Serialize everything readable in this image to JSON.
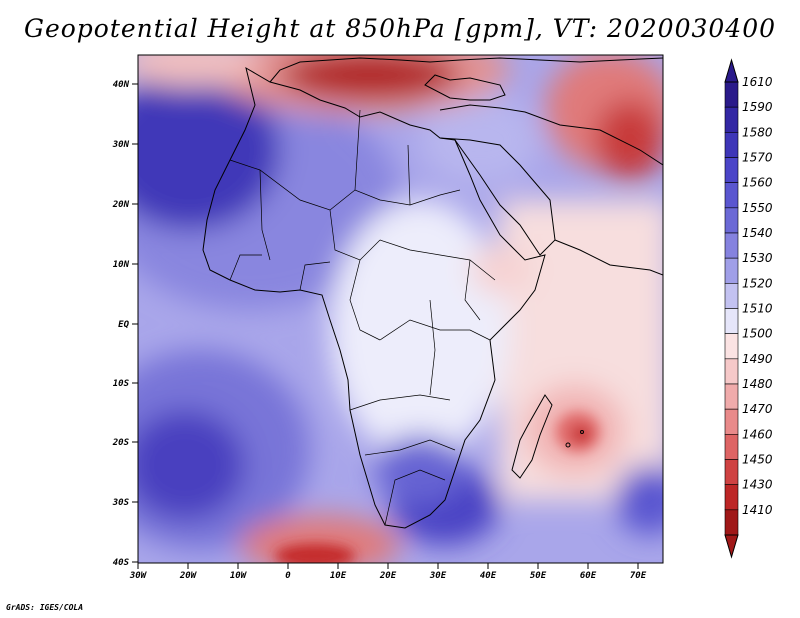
{
  "title": "Geopotential Height at 850hPa [gpm], VT: 2020030400",
  "credit": "GrADS: IGES/COLA",
  "axes": {
    "lon_labels": [
      "30W",
      "20W",
      "10W",
      "0",
      "10E",
      "20E",
      "30E",
      "40E",
      "50E",
      "60E",
      "70E"
    ],
    "lat_labels": [
      "40N",
      "30N",
      "20N",
      "10N",
      "EQ",
      "10S",
      "20S",
      "30S",
      "40S"
    ]
  },
  "colorbar": {
    "levels": [
      "1610",
      "1590",
      "1580",
      "1570",
      "1560",
      "1550",
      "1540",
      "1530",
      "1520",
      "1510",
      "1500",
      "1490",
      "1480",
      "1470",
      "1460",
      "1450",
      "1430",
      "1410"
    ],
    "colors": [
      "#2a1a8a",
      "#3327a4",
      "#3e36b8",
      "#4b45c8",
      "#5a56d0",
      "#6b69d6",
      "#8582df",
      "#a09fe8",
      "#c3c2f1",
      "#e6e6fa",
      "#fbe3e3",
      "#f6c9c9",
      "#f0abab",
      "#e98a8a",
      "#de6464",
      "#cf4242",
      "#bd2626",
      "#a01818"
    ]
  },
  "map": {
    "region": "Africa, Middle East and surrounding oceans",
    "lon_range": [
      -30,
      75
    ],
    "lat_range": [
      -40,
      45
    ]
  }
}
